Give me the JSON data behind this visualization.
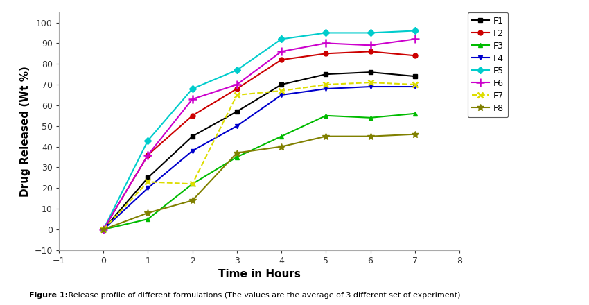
{
  "x": [
    0,
    1,
    2,
    3,
    4,
    5,
    6,
    7
  ],
  "series": [
    {
      "name": "F1",
      "y": [
        0,
        25,
        45,
        57,
        70,
        75,
        76,
        74
      ],
      "color": "#000000",
      "marker": "s",
      "linestyle": "-",
      "ms": 5
    },
    {
      "name": "F2",
      "y": [
        0,
        36,
        55,
        68,
        82,
        85,
        86,
        84
      ],
      "color": "#cc0000",
      "marker": "o",
      "linestyle": "-",
      "ms": 5
    },
    {
      "name": "F3",
      "y": [
        0,
        5,
        22,
        35,
        45,
        55,
        54,
        56
      ],
      "color": "#00bb00",
      "marker": "^",
      "linestyle": "-",
      "ms": 5
    },
    {
      "name": "F4",
      "y": [
        0,
        20,
        38,
        50,
        65,
        68,
        69,
        69
      ],
      "color": "#0000cc",
      "marker": "v",
      "linestyle": "-",
      "ms": 5
    },
    {
      "name": "F5",
      "y": [
        0,
        43,
        68,
        77,
        92,
        95,
        95,
        96
      ],
      "color": "#00cccc",
      "marker": "D",
      "linestyle": "-",
      "ms": 5
    },
    {
      "name": "F6",
      "y": [
        0,
        36,
        63,
        70,
        86,
        90,
        89,
        92
      ],
      "color": "#cc00cc",
      "marker": "+",
      "linestyle": "-",
      "ms": 8
    },
    {
      "name": "F7",
      "y": [
        0,
        23,
        22,
        65,
        67,
        70,
        71,
        70
      ],
      "color": "#dddd00",
      "marker": "x",
      "linestyle": "--",
      "ms": 6
    },
    {
      "name": "F8",
      "y": [
        0,
        8,
        14,
        37,
        40,
        45,
        45,
        46
      ],
      "color": "#808000",
      "marker": "*",
      "linestyle": "-",
      "ms": 7
    }
  ],
  "xlabel": "Time in Hours",
  "ylabel": "Drug Released (Wt %)",
  "xlim": [
    -1,
    8
  ],
  "ylim": [
    -10,
    105
  ],
  "xticks": [
    -1,
    0,
    1,
    2,
    3,
    4,
    5,
    6,
    7,
    8
  ],
  "yticks": [
    -10,
    0,
    10,
    20,
    30,
    40,
    50,
    60,
    70,
    80,
    90,
    100
  ],
  "figure_caption_bold": "Figure 1:",
  "figure_caption_normal": " Release profile of different formulations (The values are the average of 3 different set of experiment).",
  "background_color": "#ffffff"
}
